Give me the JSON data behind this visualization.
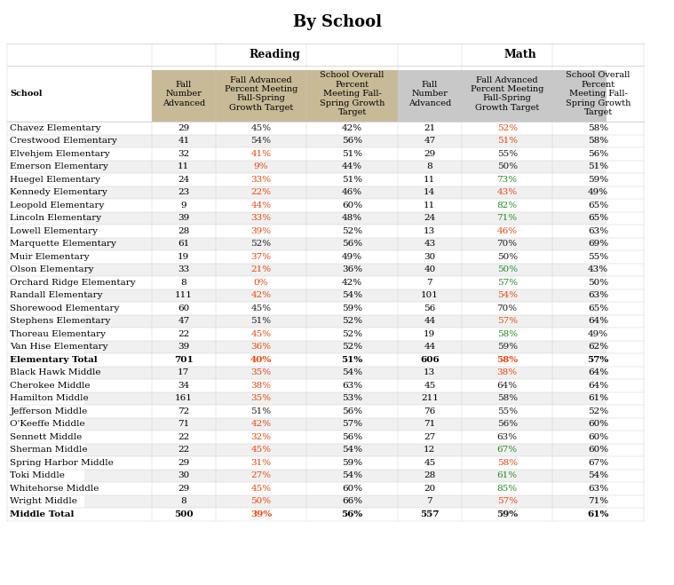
{
  "title": "By School",
  "col_headers_row2": [
    "School",
    "Fall\nNumber\nAdvanced",
    "Fall Advanced\nPercent Meeting\nFall-Spring\nGrowth Target",
    "School Overall\nPercent\nMeeting Fall-\nSpring Growth\nTarget",
    "Fall\nNumber\nAdvanced",
    "Fall Advanced\nPercent Meeting\nFall-Spring\nGrowth Target",
    "School Overall\nPercent\nMeeting Fall-\nSpring Growth\nTarget"
  ],
  "reading_header_bg": "#C8BA96",
  "math_header_bg": "#C8C8C8",
  "rows": [
    {
      "school": "Chavez Elementary",
      "bold": false,
      "r_num": "29",
      "r_pct": "45%",
      "r_pct_color": "black",
      "r_overall": "42%",
      "m_num": "21",
      "m_pct": "52%",
      "m_pct_color": "red",
      "m_overall": "58%"
    },
    {
      "school": "Crestwood Elementary",
      "bold": false,
      "r_num": "41",
      "r_pct": "54%",
      "r_pct_color": "black",
      "r_overall": "56%",
      "m_num": "47",
      "m_pct": "51%",
      "m_pct_color": "red",
      "m_overall": "58%"
    },
    {
      "school": "Elvehjem Elementary",
      "bold": false,
      "r_num": "32",
      "r_pct": "41%",
      "r_pct_color": "red",
      "r_overall": "51%",
      "m_num": "29",
      "m_pct": "55%",
      "m_pct_color": "black",
      "m_overall": "56%"
    },
    {
      "school": "Emerson Elementary",
      "bold": false,
      "r_num": "11",
      "r_pct": "9%",
      "r_pct_color": "red",
      "r_overall": "44%",
      "m_num": "8",
      "m_pct": "50%",
      "m_pct_color": "black",
      "m_overall": "51%"
    },
    {
      "school": "Huegel Elementary",
      "bold": false,
      "r_num": "24",
      "r_pct": "33%",
      "r_pct_color": "red",
      "r_overall": "51%",
      "m_num": "11",
      "m_pct": "73%",
      "m_pct_color": "green",
      "m_overall": "59%"
    },
    {
      "school": "Kennedy Elementary",
      "bold": false,
      "r_num": "23",
      "r_pct": "22%",
      "r_pct_color": "red",
      "r_overall": "46%",
      "m_num": "14",
      "m_pct": "43%",
      "m_pct_color": "red",
      "m_overall": "49%"
    },
    {
      "school": "Leopold Elementary",
      "bold": false,
      "r_num": "9",
      "r_pct": "44%",
      "r_pct_color": "red",
      "r_overall": "60%",
      "m_num": "11",
      "m_pct": "82%",
      "m_pct_color": "green",
      "m_overall": "65%"
    },
    {
      "school": "Lincoln Elementary",
      "bold": false,
      "r_num": "39",
      "r_pct": "33%",
      "r_pct_color": "red",
      "r_overall": "48%",
      "m_num": "24",
      "m_pct": "71%",
      "m_pct_color": "green",
      "m_overall": "65%"
    },
    {
      "school": "Lowell Elementary",
      "bold": false,
      "r_num": "28",
      "r_pct": "39%",
      "r_pct_color": "red",
      "r_overall": "52%",
      "m_num": "13",
      "m_pct": "46%",
      "m_pct_color": "red",
      "m_overall": "63%"
    },
    {
      "school": "Marquette Elementary",
      "bold": false,
      "r_num": "61",
      "r_pct": "52%",
      "r_pct_color": "black",
      "r_overall": "56%",
      "m_num": "43",
      "m_pct": "70%",
      "m_pct_color": "black",
      "m_overall": "69%"
    },
    {
      "school": "Muir Elementary",
      "bold": false,
      "r_num": "19",
      "r_pct": "37%",
      "r_pct_color": "red",
      "r_overall": "49%",
      "m_num": "30",
      "m_pct": "50%",
      "m_pct_color": "black",
      "m_overall": "55%"
    },
    {
      "school": "Olson Elementary",
      "bold": false,
      "r_num": "33",
      "r_pct": "21%",
      "r_pct_color": "red",
      "r_overall": "36%",
      "m_num": "40",
      "m_pct": "50%",
      "m_pct_color": "green",
      "m_overall": "43%"
    },
    {
      "school": "Orchard Ridge Elementary",
      "bold": false,
      "r_num": "8",
      "r_pct": "0%",
      "r_pct_color": "red",
      "r_overall": "42%",
      "m_num": "7",
      "m_pct": "57%",
      "m_pct_color": "green",
      "m_overall": "50%"
    },
    {
      "school": "Randall Elementary",
      "bold": false,
      "r_num": "111",
      "r_pct": "42%",
      "r_pct_color": "red",
      "r_overall": "54%",
      "m_num": "101",
      "m_pct": "54%",
      "m_pct_color": "red",
      "m_overall": "63%"
    },
    {
      "school": "Shorewood Elementary",
      "bold": false,
      "r_num": "60",
      "r_pct": "45%",
      "r_pct_color": "black",
      "r_overall": "59%",
      "m_num": "56",
      "m_pct": "70%",
      "m_pct_color": "black",
      "m_overall": "65%"
    },
    {
      "school": "Stephens Elementary",
      "bold": false,
      "r_num": "47",
      "r_pct": "51%",
      "r_pct_color": "black",
      "r_overall": "52%",
      "m_num": "44",
      "m_pct": "57%",
      "m_pct_color": "red",
      "m_overall": "64%"
    },
    {
      "school": "Thoreau Elementary",
      "bold": false,
      "r_num": "22",
      "r_pct": "45%",
      "r_pct_color": "red",
      "r_overall": "52%",
      "m_num": "19",
      "m_pct": "58%",
      "m_pct_color": "green",
      "m_overall": "49%"
    },
    {
      "school": "Van Hise Elementary",
      "bold": false,
      "r_num": "39",
      "r_pct": "36%",
      "r_pct_color": "red",
      "r_overall": "52%",
      "m_num": "44",
      "m_pct": "59%",
      "m_pct_color": "black",
      "m_overall": "62%"
    },
    {
      "school": "Elementary Total",
      "bold": true,
      "r_num": "701",
      "r_pct": "40%",
      "r_pct_color": "red",
      "r_overall": "51%",
      "m_num": "606",
      "m_pct": "58%",
      "m_pct_color": "red",
      "m_overall": "57%"
    },
    {
      "school": "Black Hawk Middle",
      "bold": false,
      "r_num": "17",
      "r_pct": "35%",
      "r_pct_color": "red",
      "r_overall": "54%",
      "m_num": "13",
      "m_pct": "38%",
      "m_pct_color": "red",
      "m_overall": "64%"
    },
    {
      "school": "Cherokee Middle",
      "bold": false,
      "r_num": "34",
      "r_pct": "38%",
      "r_pct_color": "red",
      "r_overall": "63%",
      "m_num": "45",
      "m_pct": "64%",
      "m_pct_color": "black",
      "m_overall": "64%"
    },
    {
      "school": "Hamilton Middle",
      "bold": false,
      "r_num": "161",
      "r_pct": "35%",
      "r_pct_color": "red",
      "r_overall": "53%",
      "m_num": "211",
      "m_pct": "58%",
      "m_pct_color": "black",
      "m_overall": "61%"
    },
    {
      "school": "Jefferson Middle",
      "bold": false,
      "r_num": "72",
      "r_pct": "51%",
      "r_pct_color": "black",
      "r_overall": "56%",
      "m_num": "76",
      "m_pct": "55%",
      "m_pct_color": "black",
      "m_overall": "52%"
    },
    {
      "school": "O'Keeffe Middle",
      "bold": false,
      "r_num": "71",
      "r_pct": "42%",
      "r_pct_color": "red",
      "r_overall": "57%",
      "m_num": "71",
      "m_pct": "56%",
      "m_pct_color": "black",
      "m_overall": "60%"
    },
    {
      "school": "Sennett Middle",
      "bold": false,
      "r_num": "22",
      "r_pct": "32%",
      "r_pct_color": "red",
      "r_overall": "56%",
      "m_num": "27",
      "m_pct": "63%",
      "m_pct_color": "black",
      "m_overall": "60%"
    },
    {
      "school": "Sherman Middle",
      "bold": false,
      "r_num": "22",
      "r_pct": "45%",
      "r_pct_color": "red",
      "r_overall": "54%",
      "m_num": "12",
      "m_pct": "67%",
      "m_pct_color": "green",
      "m_overall": "60%"
    },
    {
      "school": "Spring Harbor Middle",
      "bold": false,
      "r_num": "29",
      "r_pct": "31%",
      "r_pct_color": "red",
      "r_overall": "59%",
      "m_num": "45",
      "m_pct": "58%",
      "m_pct_color": "red",
      "m_overall": "67%"
    },
    {
      "school": "Toki Middle",
      "bold": false,
      "r_num": "30",
      "r_pct": "27%",
      "r_pct_color": "red",
      "r_overall": "54%",
      "m_num": "28",
      "m_pct": "61%",
      "m_pct_color": "green",
      "m_overall": "54%"
    },
    {
      "school": "Whitehorse Middle",
      "bold": false,
      "r_num": "29",
      "r_pct": "45%",
      "r_pct_color": "red",
      "r_overall": "60%",
      "m_num": "20",
      "m_pct": "85%",
      "m_pct_color": "green",
      "m_overall": "63%"
    },
    {
      "school": "Wright Middle",
      "bold": false,
      "r_num": "8",
      "r_pct": "50%",
      "r_pct_color": "red",
      "r_overall": "66%",
      "m_num": "7",
      "m_pct": "57%",
      "m_pct_color": "red",
      "m_overall": "71%"
    },
    {
      "school": "Middle Total",
      "bold": true,
      "r_num": "500",
      "r_pct": "39%",
      "r_pct_color": "red",
      "r_overall": "56%",
      "m_num": "557",
      "m_pct": "59%",
      "m_pct_color": "black",
      "m_overall": "61%"
    }
  ],
  "color_map": {
    "red": "#E8450A",
    "green": "#228B22",
    "black": "#1A1A1A"
  }
}
